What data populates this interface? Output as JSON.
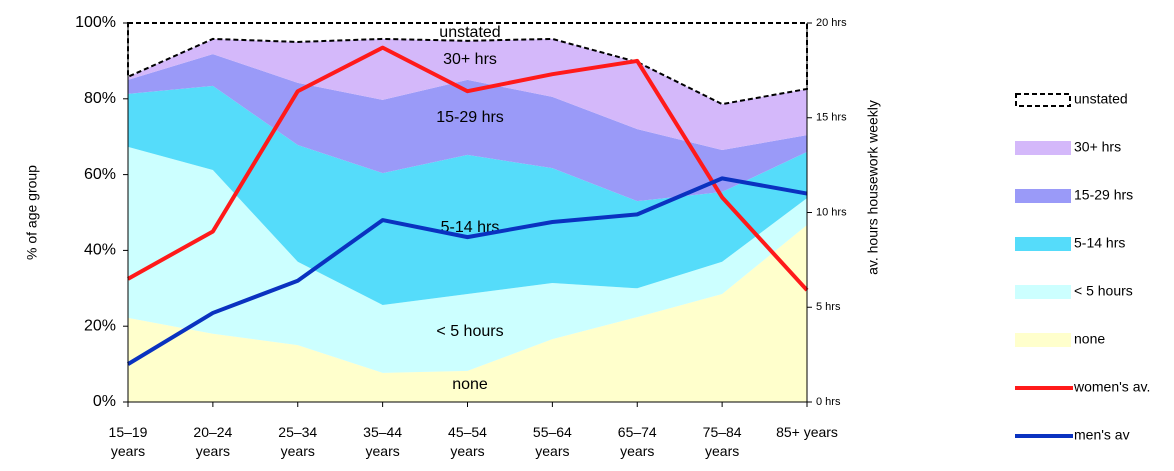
{
  "chart_data": {
    "type": "area",
    "categories": [
      "15–19 years",
      "20–24 years",
      "25–34 years",
      "35–44 years",
      "45–54 years",
      "55–64 years",
      "65–74 years",
      "75–84 years",
      "85+ years"
    ],
    "ylabel": "% of age group",
    "y2label": "av. hours housework weekly",
    "ylim": [
      0,
      100
    ],
    "yticks": [
      {
        "value": 0,
        "label": "0%"
      },
      {
        "value": 20,
        "label": "20%"
      },
      {
        "value": 40,
        "label": "40%"
      },
      {
        "value": 60,
        "label": "60%"
      },
      {
        "value": 80,
        "label": "80%"
      },
      {
        "value": 100,
        "label": "100%"
      }
    ],
    "y2lim": [
      0,
      20
    ],
    "y2ticks": [
      {
        "value": 0,
        "label": "0 hrs"
      },
      {
        "value": 5,
        "label": "5 hrs"
      },
      {
        "value": 10,
        "label": "10 hrs"
      },
      {
        "value": 15,
        "label": "15 hrs"
      },
      {
        "value": 20,
        "label": "20 hrs"
      }
    ],
    "legend": "right",
    "series": [
      {
        "name": "none",
        "color": "#ffffcc",
        "values": [
          22.2,
          18,
          15,
          7.7,
          8.2,
          16.6,
          22.4,
          28.5,
          46.7
        ]
      },
      {
        "name": "< 5 hours",
        "color": "#ccffff",
        "values": [
          45.1,
          43.2,
          22,
          17.9,
          20.3,
          14.8,
          7.6,
          8.5,
          7.1
        ]
      },
      {
        "name": "5-14 hrs",
        "color": "#55dcfa",
        "values": [
          14,
          22.2,
          30.8,
          34.8,
          36.7,
          30.3,
          23,
          18.4,
          12.2
        ]
      },
      {
        "name": "15-29 hrs",
        "color": "#9a9af8",
        "values": [
          3.7,
          8.4,
          16.4,
          19.3,
          19.8,
          18.8,
          19,
          11.1,
          4.4
        ]
      },
      {
        "name": "30+ hrs",
        "color": "#d4b8fa",
        "values": [
          0.8,
          4,
          10.8,
          16.1,
          10.3,
          15.3,
          17.7,
          12.1,
          12.2
        ]
      },
      {
        "name": "unstated",
        "color": "#ffffff",
        "values": [
          14.2,
          4.2,
          5,
          4.2,
          4.7,
          4.2,
          10.3,
          21.4,
          17.4
        ]
      },
      {
        "name": "women's av.",
        "color": "#ff1a1a",
        "axis": "y2",
        "values": [
          6.5,
          9.0,
          16.4,
          18.7,
          16.4,
          17.3,
          18.0,
          10.8,
          5.9
        ]
      },
      {
        "name": "men's av",
        "color": "#0a32c0",
        "axis": "y2",
        "values": [
          2.0,
          4.7,
          6.4,
          9.6,
          8.7,
          9.5,
          9.9,
          11.8,
          11.0
        ]
      }
    ]
  }
}
